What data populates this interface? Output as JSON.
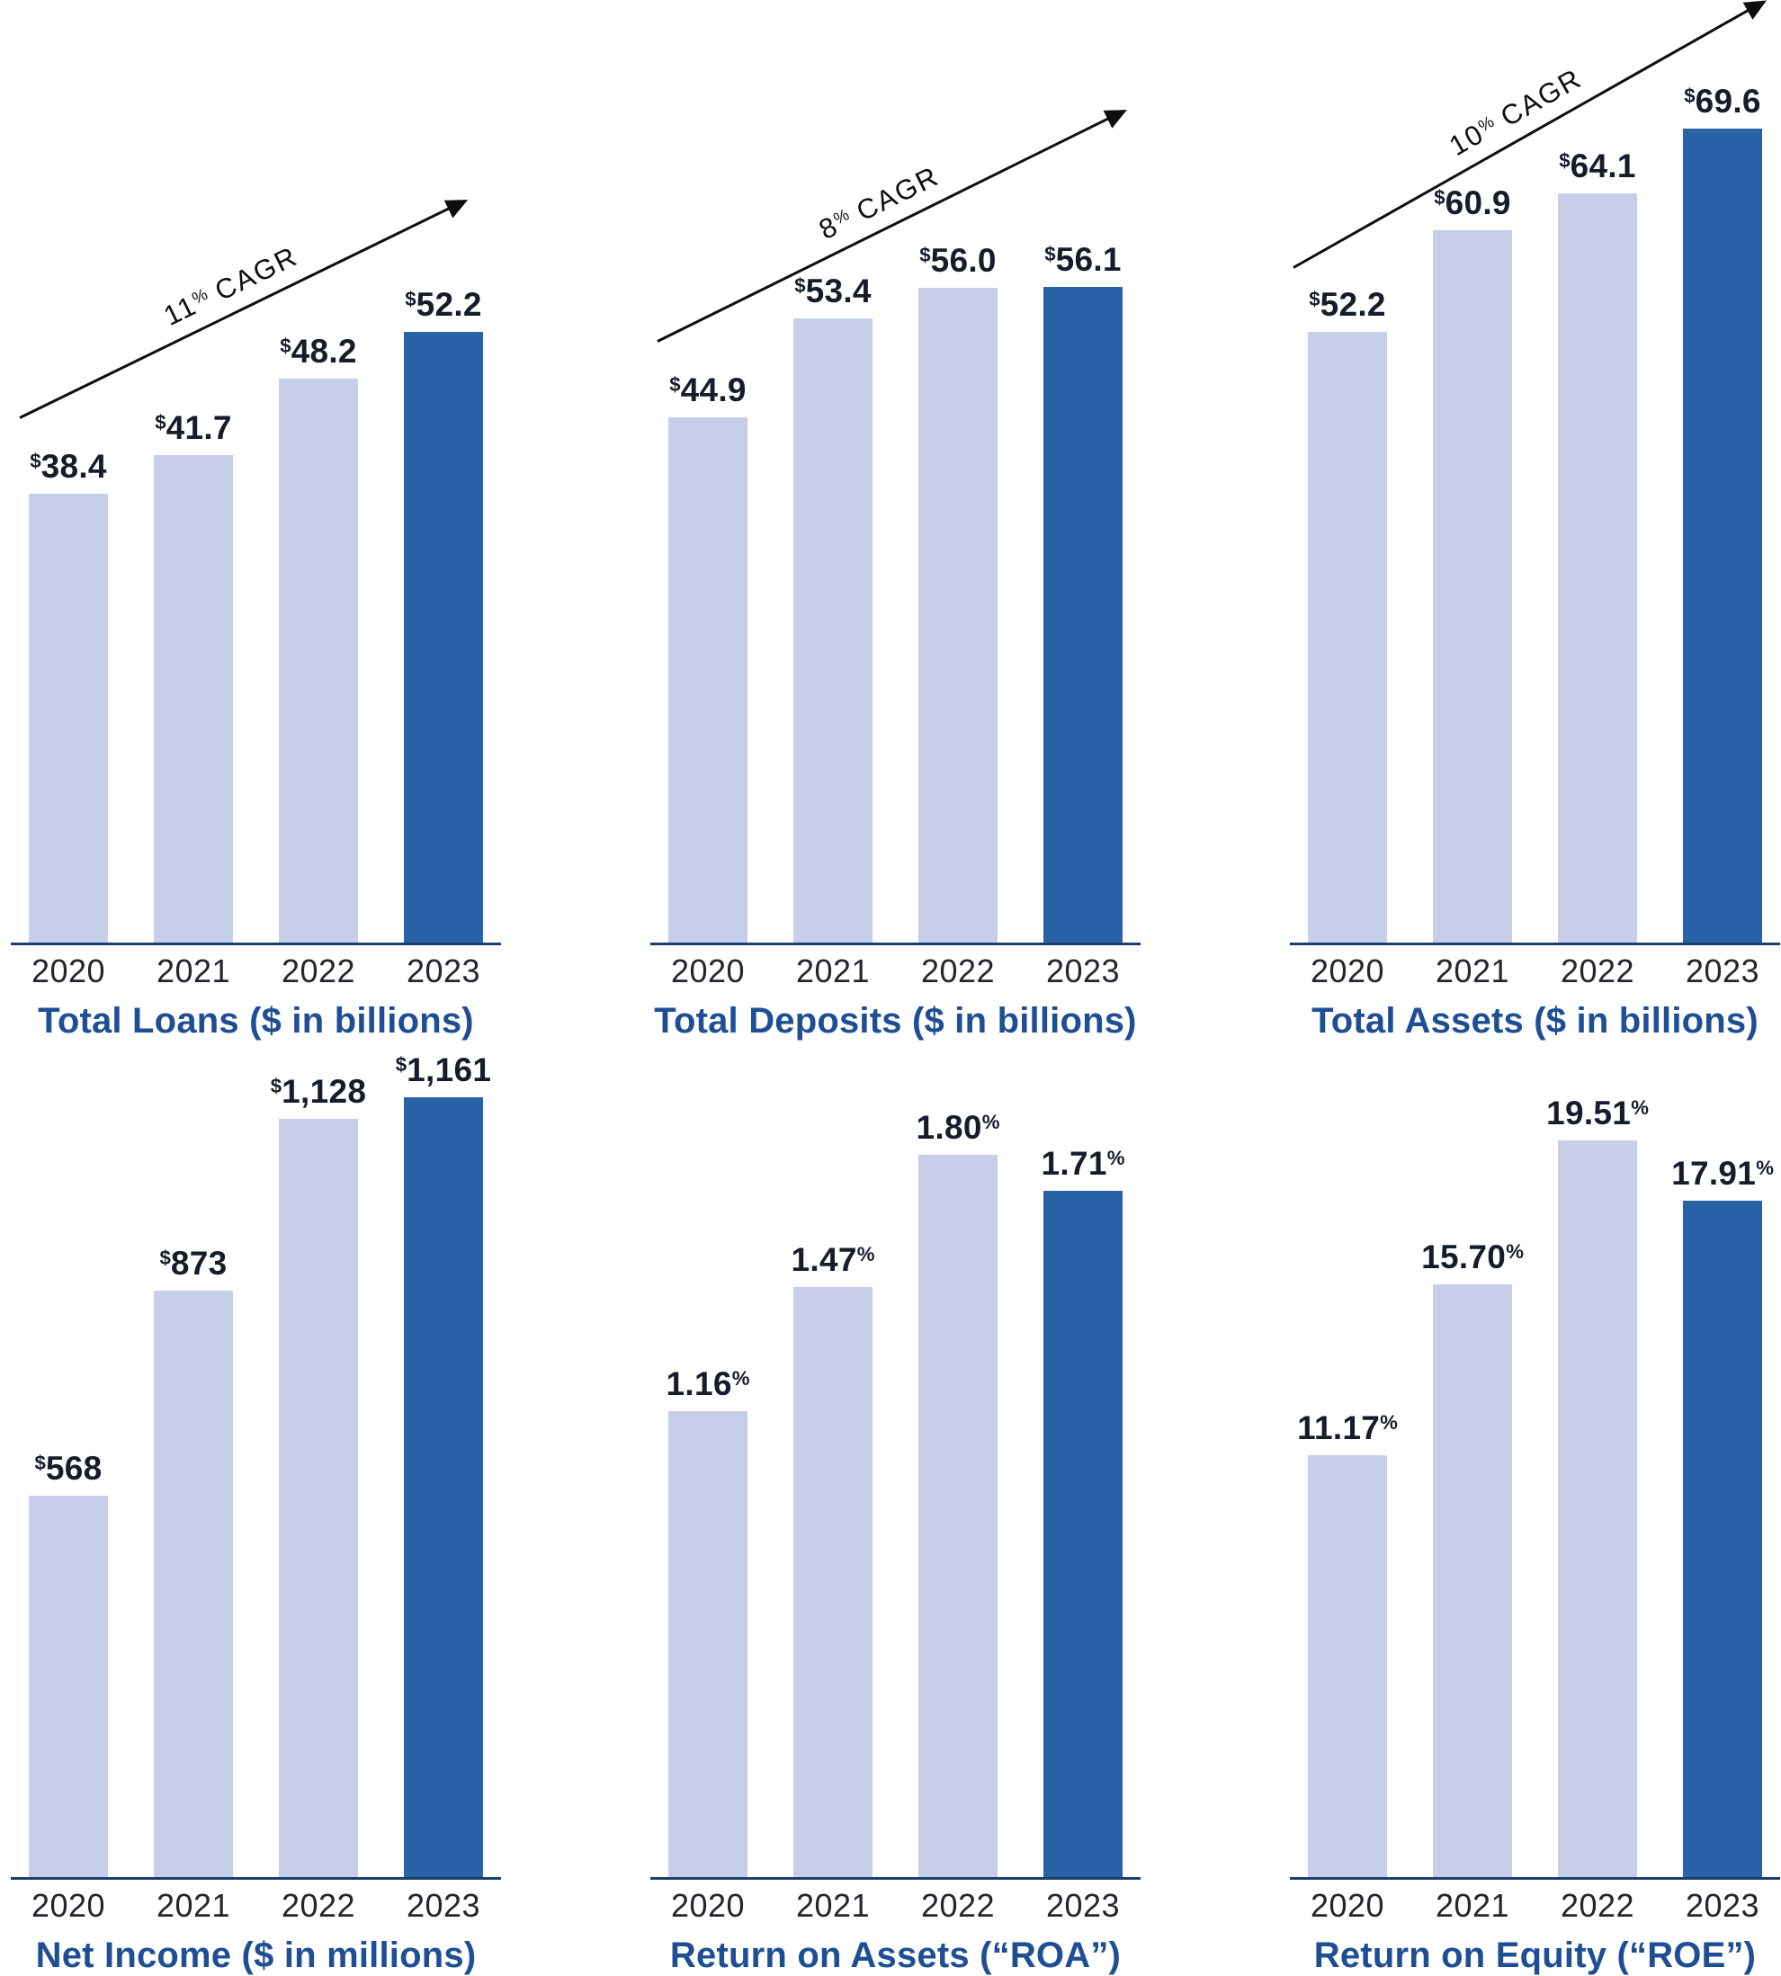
{
  "colors": {
    "bar_light": "#c6cee9",
    "bar_dark": "#2a62a7",
    "title": "#1e4e94",
    "axis": "#1c3f6d",
    "value_label": "#171c2a",
    "year_label": "#23262d",
    "arrow": "#0e0e10",
    "background": "#ffffff"
  },
  "chart_data": [
    {
      "id": "total-loans",
      "type": "bar",
      "title": "Total Loans ($ in billions)",
      "categories": [
        "2020",
        "2021",
        "2022",
        "2023"
      ],
      "values": [
        38.4,
        41.7,
        48.2,
        52.2
      ],
      "value_labels": [
        "38.4",
        "41.7",
        "48.2",
        "52.2"
      ],
      "label_prefix": "$",
      "label_suffix": "",
      "annotation": {
        "value": "11",
        "unit": "%",
        "label": "CAGR"
      },
      "ylim": [
        0,
        80
      ],
      "highlight_index": 3,
      "grid": false,
      "legend": false
    },
    {
      "id": "total-deposits",
      "type": "bar",
      "title": "Total Deposits ($ in billions)",
      "categories": [
        "2020",
        "2021",
        "2022",
        "2023"
      ],
      "values": [
        44.9,
        53.4,
        56.0,
        56.1
      ],
      "value_labels": [
        "44.9",
        "53.4",
        "56.0",
        "56.1"
      ],
      "label_prefix": "$",
      "label_suffix": "",
      "annotation": {
        "value": "8",
        "unit": "%",
        "label": "CAGR"
      },
      "ylim": [
        0,
        80
      ],
      "highlight_index": 3,
      "grid": false,
      "legend": false
    },
    {
      "id": "total-assets",
      "type": "bar",
      "title": "Total Assets ($ in billions)",
      "categories": [
        "2020",
        "2021",
        "2022",
        "2023"
      ],
      "values": [
        52.2,
        60.9,
        64.1,
        69.6
      ],
      "value_labels": [
        "52.2",
        "60.9",
        "64.1",
        "69.6"
      ],
      "label_prefix": "$",
      "label_suffix": "",
      "annotation": {
        "value": "10",
        "unit": "%",
        "label": "CAGR"
      },
      "ylim": [
        0,
        80
      ],
      "highlight_index": 3,
      "grid": false,
      "legend": false
    },
    {
      "id": "net-income",
      "type": "bar",
      "title": "Net Income ($ in millions)",
      "categories": [
        "2020",
        "2021",
        "2022",
        "2023"
      ],
      "values": [
        568,
        873,
        1128,
        1161
      ],
      "value_labels": [
        "568",
        "873",
        "1,128",
        "1,161"
      ],
      "label_prefix": "$",
      "label_suffix": "",
      "annotation": null,
      "ylim": [
        0,
        1225
      ],
      "highlight_index": 3,
      "grid": false,
      "legend": false
    },
    {
      "id": "return-on-assets",
      "type": "bar",
      "title": "Return on Assets (“ROA”)",
      "categories": [
        "2020",
        "2021",
        "2022",
        "2023"
      ],
      "values": [
        1.16,
        1.47,
        1.8,
        1.71
      ],
      "value_labels": [
        "1.16",
        "1.47",
        "1.80",
        "1.71"
      ],
      "label_prefix": "",
      "label_suffix": "%",
      "annotation": null,
      "ylim": [
        0,
        2.05
      ],
      "highlight_index": 3,
      "grid": false,
      "legend": false
    },
    {
      "id": "return-on-equity",
      "type": "bar",
      "title": "Return on Equity (“ROE”)",
      "categories": [
        "2020",
        "2021",
        "2022",
        "2023"
      ],
      "values": [
        11.17,
        15.7,
        19.51,
        17.91
      ],
      "value_labels": [
        "11.17",
        "15.70",
        "19.51",
        "17.91"
      ],
      "label_prefix": "",
      "label_suffix": "%",
      "annotation": null,
      "ylim": [
        0,
        21.8
      ],
      "highlight_index": 3,
      "grid": false,
      "legend": false
    }
  ]
}
